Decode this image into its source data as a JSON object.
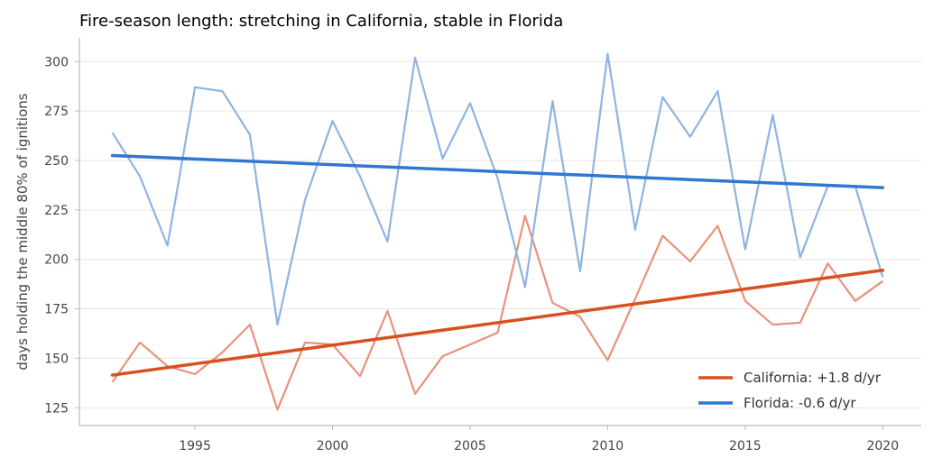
{
  "chart_data": {
    "type": "line",
    "title": "Fire-season length: stretching in California, stable in Florida",
    "xlabel": "",
    "ylabel": "days holding the middle 80% of ignitions",
    "xlim": [
      1990.8,
      2021.4
    ],
    "ylim": [
      116,
      312
    ],
    "x_ticks": [
      1995,
      2000,
      2005,
      2010,
      2015,
      2020
    ],
    "y_ticks": [
      125,
      150,
      175,
      200,
      225,
      250,
      275,
      300
    ],
    "grid": "horizontal",
    "legend_position": "lower-right",
    "x": [
      1992,
      1993,
      1994,
      1995,
      1996,
      1997,
      1998,
      1999,
      2000,
      2001,
      2002,
      2003,
      2004,
      2005,
      2006,
      2007,
      2008,
      2009,
      2010,
      2011,
      2012,
      2013,
      2014,
      2015,
      2016,
      2017,
      2018,
      2019,
      2020
    ],
    "series": [
      {
        "key": "california",
        "color": "#e8927c",
        "values": [
          138,
          158,
          146,
          142,
          153,
          167,
          124,
          158,
          157,
          141,
          174,
          132,
          151,
          157,
          163,
          222,
          178,
          171,
          149,
          180,
          212,
          199,
          217,
          179,
          167,
          168,
          198,
          179,
          189
        ]
      },
      {
        "key": "florida",
        "color": "#8db4e2",
        "values": [
          264,
          242,
          207,
          287,
          285,
          263,
          167,
          230,
          270,
          242,
          209,
          302,
          251,
          279,
          241,
          186,
          280,
          194,
          304,
          215,
          282,
          262,
          285,
          205,
          273,
          201,
          237,
          237,
          191
        ]
      }
    ],
    "trends": [
      {
        "name": "California: +1.8 d/yr",
        "color": "#d9501e",
        "x": [
          1992,
          2020
        ],
        "y": [
          141.5,
          194.5
        ]
      },
      {
        "name": "Florida: -0.6 d/yr",
        "color": "#2f78cf",
        "x": [
          1992,
          2020
        ],
        "y": [
          252.5,
          236.3
        ]
      }
    ],
    "colors": {
      "axis": "#bbbbb0",
      "grid": "#e6e6e6"
    }
  }
}
